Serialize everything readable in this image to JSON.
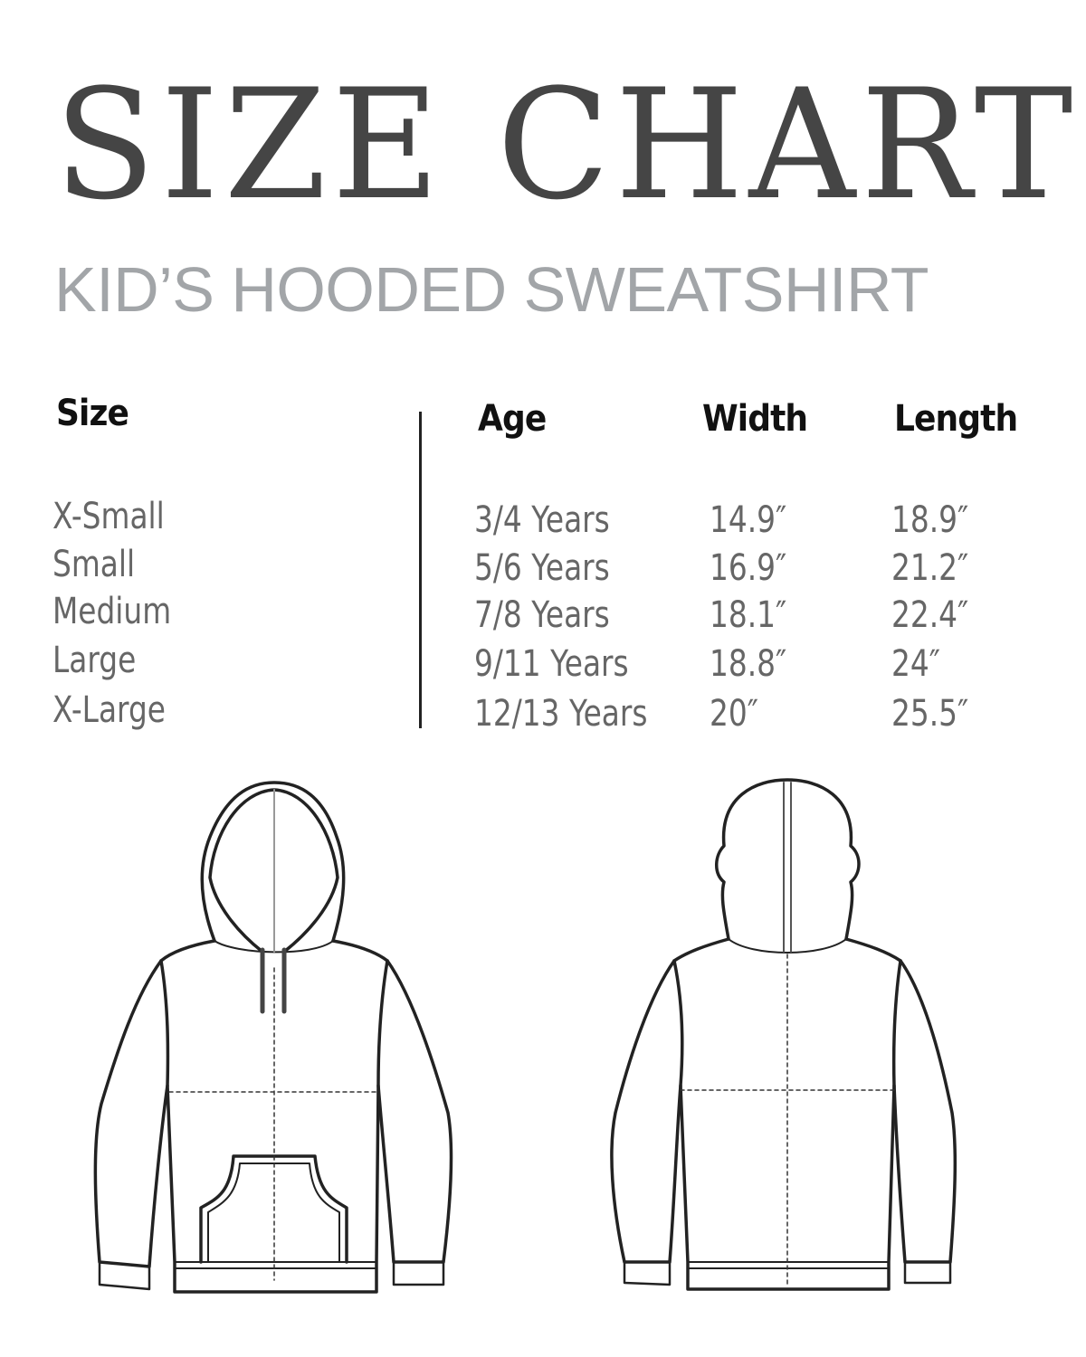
{
  "title": "SIZE CHART",
  "subtitle": "KID’S HOODED SWEATSHIRT",
  "table": {
    "headers": {
      "size": "Size",
      "age": "Age",
      "width": "Width",
      "length": "Length"
    },
    "rows": [
      {
        "size": "X-Small",
        "age": "3/4 Years",
        "width": "14.9″",
        "length": "18.9″"
      },
      {
        "size": "Small",
        "age": "5/6 Years",
        "width": "16.9″",
        "length": "21.2″"
      },
      {
        "size": "Medium",
        "age": "7/8 Years",
        "width": "18.1″",
        "length": "22.4″"
      },
      {
        "size": "Large",
        "age": "9/11 Years",
        "width": "18.8″",
        "length": "24″"
      },
      {
        "size": "X-Large",
        "age": "12/13 Years",
        "width": "20″",
        "length": "25.5″"
      }
    ]
  },
  "diagrams": {
    "front": "hoodie-front-illustration",
    "back": "hoodie-back-illustration"
  }
}
